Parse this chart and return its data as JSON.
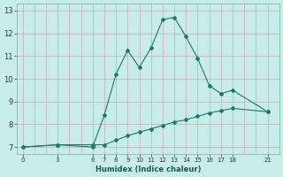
{
  "xlabel": "Humidex (Indice chaleur)",
  "ylabel": "",
  "background_color": "#c8ece8",
  "grid_color": "#c8aab4",
  "line_color": "#1a7a6e",
  "line1_x": [
    0,
    3,
    6,
    7,
    8,
    9,
    10,
    11,
    12,
    13,
    14,
    15,
    16,
    17,
    18,
    21
  ],
  "line1_y": [
    7.0,
    7.1,
    7.0,
    8.4,
    10.2,
    11.25,
    10.5,
    11.35,
    12.6,
    12.7,
    11.85,
    10.9,
    9.7,
    9.35,
    9.5,
    8.55
  ],
  "line2_x": [
    0,
    3,
    6,
    7,
    8,
    9,
    10,
    11,
    12,
    13,
    14,
    15,
    16,
    17,
    18,
    21
  ],
  "line2_y": [
    7.0,
    7.1,
    7.1,
    7.1,
    7.3,
    7.5,
    7.65,
    7.8,
    7.95,
    8.1,
    8.2,
    8.35,
    8.5,
    8.6,
    8.7,
    8.55
  ],
  "xticks": [
    0,
    3,
    6,
    7,
    8,
    9,
    10,
    11,
    12,
    13,
    14,
    15,
    16,
    17,
    18,
    21
  ],
  "yticks": [
    7,
    8,
    9,
    10,
    11,
    12,
    13
  ],
  "ylim": [
    6.7,
    13.3
  ],
  "xlim": [
    -0.5,
    22
  ],
  "grid_xticks": [
    0,
    1,
    2,
    3,
    4,
    5,
    6,
    7,
    8,
    9,
    10,
    11,
    12,
    13,
    14,
    15,
    16,
    17,
    18,
    19,
    20,
    21
  ]
}
